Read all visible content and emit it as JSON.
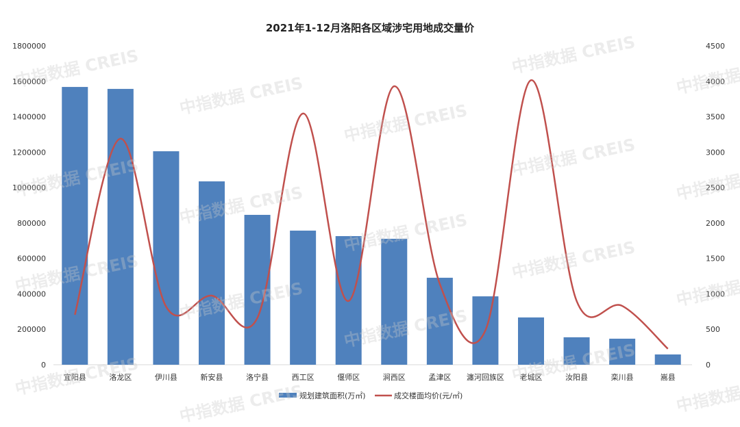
{
  "watermark": "中指数据 CREIS",
  "chart_data": {
    "type": "bar+line",
    "title": "2021年1-12月洛阳各区域涉宅用地成交量价",
    "categories": [
      "宜阳县",
      "洛龙区",
      "伊川县",
      "新安县",
      "洛宁县",
      "西工区",
      "偃师区",
      "涧西区",
      "孟津区",
      "瀍河回族区",
      "老城区",
      "汝阳县",
      "栾川县",
      "嵩县"
    ],
    "series": [
      {
        "name": "规划建筑面积(万㎡)",
        "type": "bar",
        "axis": "left",
        "color": "#4f81bd",
        "values": [
          1568000,
          1557000,
          1205000,
          1035000,
          846000,
          757000,
          726000,
          711000,
          491000,
          386000,
          267000,
          155000,
          147000,
          58000
        ]
      },
      {
        "name": "成交楼面均价(元/㎡)",
        "type": "line",
        "axis": "right",
        "color": "#c0504d",
        "values": [
          705,
          3190,
          820,
          975,
          660,
          3545,
          900,
          3930,
          1140,
          485,
          4015,
          900,
          830,
          225
        ]
      }
    ],
    "y_left": {
      "range": [
        0,
        1800000
      ],
      "ticks": [
        "0",
        "200000",
        "400000",
        "600000",
        "800000",
        "1000000",
        "1200000",
        "1400000",
        "1600000",
        "1800000"
      ]
    },
    "y_right": {
      "range": [
        0,
        4500
      ],
      "ticks": [
        "0",
        "500",
        "1000",
        "1500",
        "2000",
        "2500",
        "3000",
        "3500",
        "4000",
        "4500"
      ]
    },
    "grid": false,
    "legend": "bottom"
  }
}
